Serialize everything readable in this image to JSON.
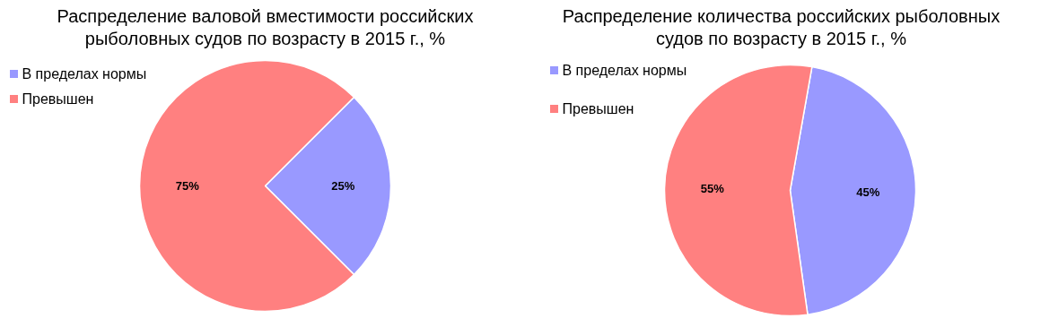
{
  "chart_data": [
    {
      "type": "pie",
      "title": "Распределение валовой вместимости российских рыболовных судов по возрасту в 2015 г., %",
      "categories": [
        "В пределах нормы",
        "Превышен"
      ],
      "values": [
        25,
        75
      ],
      "colors": [
        "#9999ff",
        "#ff8080"
      ],
      "value_labels": [
        "25%",
        "75%"
      ],
      "legend": "top left"
    },
    {
      "type": "pie",
      "title": "Распределение количества российских рыболовных судов по возрасту в 2015 г., %",
      "categories": [
        "В пределах нормы",
        "Превышен"
      ],
      "values": [
        45,
        55
      ],
      "colors": [
        "#9999ff",
        "#ff8080"
      ],
      "value_labels": [
        "45%",
        "55%"
      ],
      "legend": "top left"
    }
  ]
}
